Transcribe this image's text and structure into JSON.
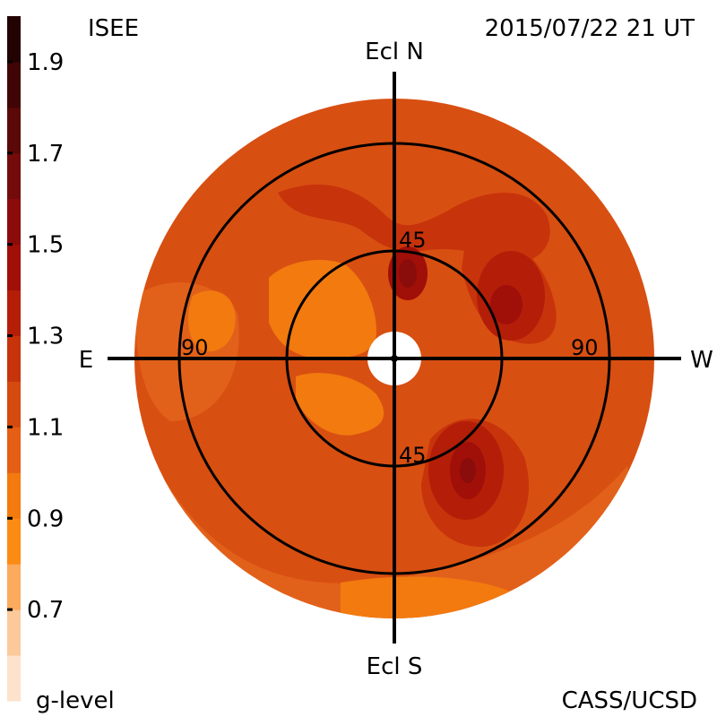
{
  "header": {
    "source": "ISEE",
    "timestamp": "2015/07/22 21 UT"
  },
  "footer": {
    "unit_label": "g-level",
    "credit": "CASS/UCSD"
  },
  "chart_data": {
    "type": "heatmap",
    "projection": "sky map centered on the Sun, ecliptic orientation",
    "direction_labels": {
      "north": "Ecl N",
      "south": "Ecl S",
      "east": "E",
      "west": "W"
    },
    "ring_labels": {
      "inner_top": "45",
      "inner_bottom": "45",
      "outer_left": "90",
      "outer_right": "90"
    },
    "elongation_rings_deg": [
      45,
      90
    ],
    "colorbar": {
      "label": "g-level",
      "range": [
        0.5,
        2.0
      ],
      "tick_labels": [
        "1.9",
        "1.7",
        "1.5",
        "1.3",
        "1.1",
        "0.9",
        "0.7"
      ],
      "tick_values": [
        1.9,
        1.7,
        1.5,
        1.3,
        1.1,
        0.9,
        0.7
      ],
      "levels": [
        {
          "from": 0.5,
          "to": 0.6,
          "color": "#fde3cc"
        },
        {
          "from": 0.6,
          "to": 0.7,
          "color": "#fbc99a"
        },
        {
          "from": 0.7,
          "to": 0.8,
          "color": "#fbaa5e"
        },
        {
          "from": 0.8,
          "to": 0.9,
          "color": "#fc8b14"
        },
        {
          "from": 0.9,
          "to": 1.0,
          "color": "#f27a0f"
        },
        {
          "from": 1.0,
          "to": 1.1,
          "color": "#e45e14"
        },
        {
          "from": 1.1,
          "to": 1.2,
          "color": "#d54a0f"
        },
        {
          "from": 1.2,
          "to": 1.3,
          "color": "#c7330b"
        },
        {
          "from": 1.3,
          "to": 1.4,
          "color": "#b41e08"
        },
        {
          "from": 1.4,
          "to": 1.5,
          "color": "#a00f08"
        },
        {
          "from": 1.5,
          "to": 1.6,
          "color": "#8a0c0b"
        },
        {
          "from": 1.6,
          "to": 1.7,
          "color": "#730b0b"
        },
        {
          "from": 1.7,
          "to": 1.8,
          "color": "#5a0808"
        },
        {
          "from": 1.8,
          "to": 1.9,
          "color": "#400505"
        },
        {
          "from": 1.9,
          "to": 2.0,
          "color": "#220202"
        }
      ]
    },
    "background_level": 1.15,
    "regions": [
      {
        "name": "enhancement-north-center",
        "level": 1.55
      },
      {
        "name": "enhancement-north-west",
        "level": 1.4
      },
      {
        "name": "enhancement-south-west",
        "level": 1.45
      },
      {
        "name": "depletion-north-east",
        "level": 0.95
      },
      {
        "name": "depletion-south",
        "level": 0.95
      }
    ]
  }
}
